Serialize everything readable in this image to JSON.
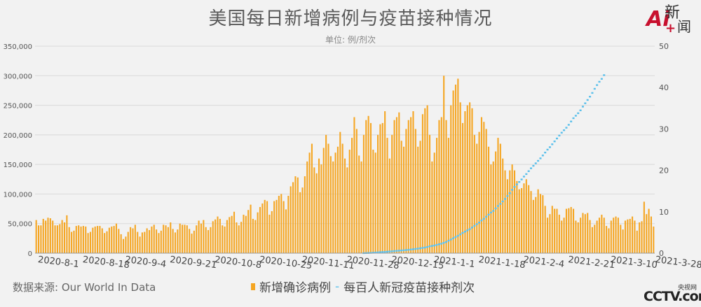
{
  "title": "美国每日新增病例与疫苗接种情况",
  "subtitle": "单位: 例/剂次",
  "source": "数据来源: Our World In Data",
  "logo_top": {
    "ai": "Ai",
    "xin": "新",
    "plus": "+",
    "wen": "闻"
  },
  "logo_bottom": {
    "small": "央视网",
    "big": "CCTV.com"
  },
  "colors": {
    "bars": "#f5a623",
    "line": "#5bc0eb",
    "text": "#555555",
    "grid": "#d9d9d9"
  },
  "legend": {
    "cases": "新增确诊病例",
    "vaccine": "每百人新冠疫苗接种剂次"
  },
  "chart_data": {
    "type": "bar",
    "title": "美国每日新增病例与疫苗接种情况",
    "subtitle": "单位: 例/剂次",
    "start_date": "2020-08-01",
    "end_date": "2021-03-28",
    "ylim": [
      0,
      350000
    ],
    "y2lim": [
      0,
      50
    ],
    "y_ticks": [
      "0",
      "50,000",
      "100,000",
      "150,000",
      "200,000",
      "250,000",
      "300,000",
      "350,000"
    ],
    "y2_ticks": [
      "0",
      "10",
      "20",
      "30",
      "40",
      "50"
    ],
    "x_tick_labels": [
      "2020-8-1",
      "2020-8-18",
      "2020-9-4",
      "2020-9-21",
      "2020-10-8",
      "2020-10-25",
      "2020-11-11",
      "2020-11-28",
      "2020-12-15",
      "2021-1-1",
      "2021-1-18",
      "2021-2-4",
      "2021-2-21",
      "2021-3-10",
      "2021-3-28"
    ],
    "legend_position": "bottom",
    "grid": true,
    "series": [
      {
        "name": "新增确诊病例",
        "type": "bar",
        "axis": "left",
        "values": [
          56000,
          47000,
          47000,
          58000,
          55000,
          60000,
          59000,
          55000,
          47000,
          47000,
          49000,
          56000,
          52000,
          64000,
          44000,
          36000,
          38000,
          46000,
          47000,
          45000,
          46000,
          45000,
          34000,
          36000,
          43000,
          45000,
          46000,
          46000,
          42000,
          34000,
          37000,
          43000,
          45000,
          46000,
          50000,
          41000,
          32000,
          24000,
          28000,
          36000,
          44000,
          42000,
          48000,
          36000,
          28000,
          35000,
          36000,
          42000,
          39000,
          45000,
          48000,
          40000,
          34000,
          38000,
          48000,
          47000,
          44000,
          52000,
          41000,
          35000,
          40000,
          50000,
          48000,
          48000,
          47000,
          41000,
          33000,
          38000,
          47000,
          55000,
          50000,
          56000,
          44000,
          39000,
          44000,
          54000,
          57000,
          62000,
          58000,
          47000,
          45000,
          56000,
          61000,
          63000,
          70000,
          52000,
          47000,
          53000,
          65000,
          63000,
          73000,
          82000,
          58000,
          56000,
          69000,
          78000,
          84000,
          90000,
          88000,
          65000,
          71000,
          88000,
          90000,
          97000,
          100000,
          88000,
          74000,
          97000,
          113000,
          120000,
          130000,
          128000,
          103000,
          111000,
          130000,
          155000,
          170000,
          185000,
          145000,
          135000,
          160000,
          150000,
          178000,
          200000,
          185000,
          164000,
          155000,
          170000,
          180000,
          205000,
          185000,
          160000,
          145000,
          175000,
          195000,
          230000,
          210000,
          165000,
          155000,
          200000,
          225000,
          232000,
          220000,
          175000,
          170000,
          200000,
          218000,
          220000,
          240000,
          195000,
          160000,
          200000,
          225000,
          230000,
          238000,
          190000,
          180000,
          210000,
          225000,
          230000,
          240000,
          210000,
          180000,
          190000,
          235000,
          245000,
          250000,
          200000,
          155000,
          170000,
          195000,
          225000,
          230000,
          300000,
          225000,
          195000,
          250000,
          275000,
          285000,
          295000,
          255000,
          220000,
          240000,
          250000,
          255000,
          245000,
          200000,
          185000,
          205000,
          230000,
          222000,
          210000,
          180000,
          150000,
          155000,
          172000,
          195000,
          185000,
          160000,
          140000,
          125000,
          140000,
          150000,
          140000,
          122000,
          108000,
          110000,
          118000,
          125000,
          115000,
          105000,
          90000,
          95000,
          108000,
          100000,
          98000,
          80000,
          60000,
          66000,
          80000,
          75000,
          75000,
          65000,
          55000,
          60000,
          75000,
          76000,
          78000,
          75000,
          55000,
          52000,
          60000,
          68000,
          66000,
          68000,
          56000,
          44000,
          48000,
          55000,
          60000,
          65000,
          60000,
          46000,
          42000,
          55000,
          60000,
          62000,
          60000,
          48000,
          40000,
          55000,
          57000,
          58000,
          62000,
          55000,
          38000,
          52000,
          54000,
          87000,
          66000,
          75000,
          62000,
          45000
        ]
      },
      {
        "name": "每百人新冠疫苗接种剂次",
        "type": "line",
        "axis": "right",
        "start_index": 139,
        "values": [
          0.01,
          0.03,
          0.05,
          0.08,
          0.11,
          0.15,
          0.2,
          0.24,
          0.28,
          0.3,
          0.35,
          0.4,
          0.45,
          0.5,
          0.56,
          0.6,
          0.65,
          0.7,
          0.75,
          0.8,
          0.88,
          0.95,
          1.02,
          1.1,
          1.18,
          1.27,
          1.36,
          1.5,
          1.65,
          1.75,
          1.85,
          2.0,
          2.15,
          2.3,
          2.5,
          2.7,
          3.0,
          3.3,
          3.6,
          3.9,
          4.2,
          4.55,
          4.9,
          5.2,
          5.5,
          5.8,
          6.2,
          6.6,
          7.0,
          7.4,
          7.9,
          8.3,
          8.8,
          9.3,
          9.8,
          10.2,
          10.8,
          11.4,
          11.9,
          12.5,
          13.1,
          13.8,
          14.5,
          15.3,
          16.0,
          16.6,
          17.2,
          17.8,
          18.5,
          19.1,
          19.8,
          20.5,
          21.1,
          21.7,
          22.3,
          22.9,
          23.6,
          24.3,
          25.0,
          25.6,
          26.3,
          27.0,
          27.7,
          28.4,
          29.1,
          29.7,
          30.3,
          31.0,
          31.8,
          32.6,
          33.2,
          33.8,
          34.5,
          35.4,
          36.2,
          37.0,
          37.8,
          38.7,
          39.7,
          40.6,
          41.4,
          42.1,
          43.0
        ]
      }
    ]
  }
}
